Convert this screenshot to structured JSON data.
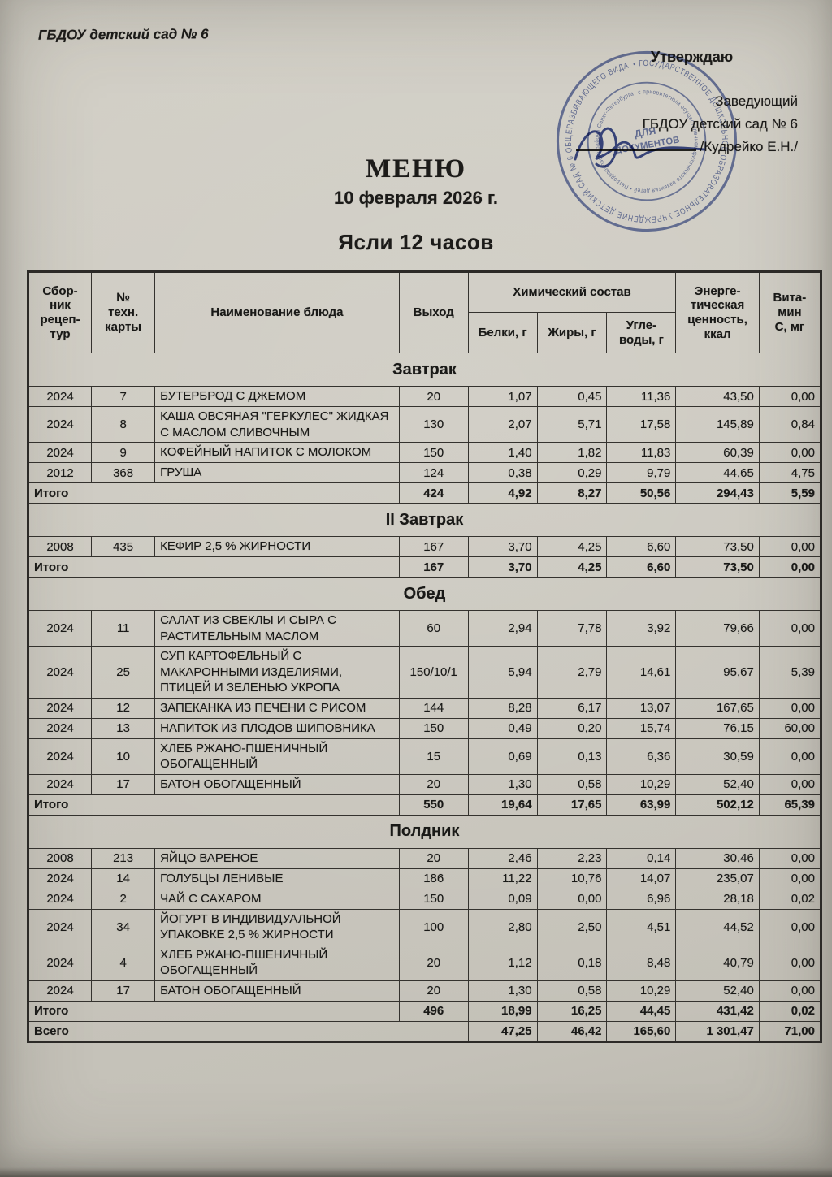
{
  "colors": {
    "paper": "#ccc9c0",
    "ink": "#1c1b19",
    "stamp_blue": "#3d519b",
    "table_line": "#34322e"
  },
  "header": {
    "org_name": "ГБДОУ детский сад № 6"
  },
  "approval": {
    "title": "Утверждаю",
    "line1": "Заведующий",
    "line2": "ГБДОУ детский сад № 6",
    "name": "/Кудрейко Е.Н./"
  },
  "stamp": {
    "outer_ring": "• ГОСУДАРСТВЕННОЕ ДОШКОЛЬНОЕ ОБРАЗОВАТЕЛЬНОЕ УЧРЕЖДЕНИЕ ДЕТСКИЙ САД № 6 ОБЩЕРАЗВИВАЮЩЕГО ВИДА",
    "inner_ring": "с приоритетным осуществлением физического развития детей • Петродворцового района Санкт-Петербурга",
    "center_line1": "ДЛЯ",
    "center_line2": "ДОКУМЕНТОВ"
  },
  "title": {
    "main": "МЕНЮ",
    "date": "10 февраля 2026 г.",
    "subtitle": "Ясли 12 часов"
  },
  "table": {
    "headers": {
      "source": "Сбор-\nник\nрецеп-\nтур",
      "card": "№\nтехн.\nкарты",
      "dish": "Наименование блюда",
      "out": "Выход",
      "chem": "Химический состав",
      "protein": "Белки, г",
      "fat": "Жиры, г",
      "carbs": "Угле-\nводы, г",
      "energy": "Энерге-\nтическая\nценность,\nккал",
      "vitc": "Вита-\nмин\nС, мг"
    },
    "total_label": "Итого",
    "grand_total_label": "Всего",
    "sections": [
      {
        "title": "Завтрак",
        "rows": [
          {
            "src": "2024",
            "card": "7",
            "name": "БУТЕРБРОД С ДЖЕМОМ",
            "out": "20",
            "protein": "1,07",
            "fat": "0,45",
            "carbs": "11,36",
            "kcal": "43,50",
            "vitc": "0,00"
          },
          {
            "src": "2024",
            "card": "8",
            "name": "КАША ОВСЯНАЯ \"ГЕРКУЛЕС\" ЖИДКАЯ С МАСЛОМ СЛИВОЧНЫМ",
            "out": "130",
            "protein": "2,07",
            "fat": "5,71",
            "carbs": "17,58",
            "kcal": "145,89",
            "vitc": "0,84"
          },
          {
            "src": "2024",
            "card": "9",
            "name": "КОФЕЙНЫЙ НАПИТОК С МОЛОКОМ",
            "out": "150",
            "protein": "1,40",
            "fat": "1,82",
            "carbs": "11,83",
            "kcal": "60,39",
            "vitc": "0,00"
          },
          {
            "src": "2012",
            "card": "368",
            "name": "ГРУША",
            "out": "124",
            "protein": "0,38",
            "fat": "0,29",
            "carbs": "9,79",
            "kcal": "44,65",
            "vitc": "4,75"
          }
        ],
        "total": {
          "out": "424",
          "protein": "4,92",
          "fat": "8,27",
          "carbs": "50,56",
          "kcal": "294,43",
          "vitc": "5,59"
        }
      },
      {
        "title": "II Завтрак",
        "rows": [
          {
            "src": "2008",
            "card": "435",
            "name": "КЕФИР 2,5 % ЖИРНОСТИ",
            "out": "167",
            "protein": "3,70",
            "fat": "4,25",
            "carbs": "6,60",
            "kcal": "73,50",
            "vitc": "0,00"
          }
        ],
        "total": {
          "out": "167",
          "protein": "3,70",
          "fat": "4,25",
          "carbs": "6,60",
          "kcal": "73,50",
          "vitc": "0,00"
        }
      },
      {
        "title": "Обед",
        "rows": [
          {
            "src": "2024",
            "card": "11",
            "name": "САЛАТ ИЗ СВЕКЛЫ И СЫРА С РАСТИТЕЛЬНЫМ МАСЛОМ",
            "out": "60",
            "protein": "2,94",
            "fat": "7,78",
            "carbs": "3,92",
            "kcal": "79,66",
            "vitc": "0,00"
          },
          {
            "src": "2024",
            "card": "25",
            "name": "СУП КАРТОФЕЛЬНЫЙ С МАКАРОННЫМИ ИЗДЕЛИЯМИ, ПТИЦЕЙ И ЗЕЛЕНЬЮ УКРОПА",
            "out": "150/10/1",
            "protein": "5,94",
            "fat": "2,79",
            "carbs": "14,61",
            "kcal": "95,67",
            "vitc": "5,39"
          },
          {
            "src": "2024",
            "card": "12",
            "name": "ЗАПЕКАНКА ИЗ ПЕЧЕНИ С РИСОМ",
            "out": "144",
            "protein": "8,28",
            "fat": "6,17",
            "carbs": "13,07",
            "kcal": "167,65",
            "vitc": "0,00"
          },
          {
            "src": "2024",
            "card": "13",
            "name": "НАПИТОК ИЗ ПЛОДОВ ШИПОВНИКА",
            "out": "150",
            "protein": "0,49",
            "fat": "0,20",
            "carbs": "15,74",
            "kcal": "76,15",
            "vitc": "60,00"
          },
          {
            "src": "2024",
            "card": "10",
            "name": "ХЛЕБ РЖАНО-ПШЕНИЧНЫЙ ОБОГАЩЕННЫЙ",
            "out": "15",
            "protein": "0,69",
            "fat": "0,13",
            "carbs": "6,36",
            "kcal": "30,59",
            "vitc": "0,00"
          },
          {
            "src": "2024",
            "card": "17",
            "name": "БАТОН ОБОГАЩЕННЫЙ",
            "out": "20",
            "protein": "1,30",
            "fat": "0,58",
            "carbs": "10,29",
            "kcal": "52,40",
            "vitc": "0,00"
          }
        ],
        "total": {
          "out": "550",
          "protein": "19,64",
          "fat": "17,65",
          "carbs": "63,99",
          "kcal": "502,12",
          "vitc": "65,39"
        }
      },
      {
        "title": "Полдник",
        "rows": [
          {
            "src": "2008",
            "card": "213",
            "name": "ЯЙЦО ВАРЕНОЕ",
            "out": "20",
            "protein": "2,46",
            "fat": "2,23",
            "carbs": "0,14",
            "kcal": "30,46",
            "vitc": "0,00"
          },
          {
            "src": "2024",
            "card": "14",
            "name": "ГОЛУБЦЫ ЛЕНИВЫЕ",
            "out": "186",
            "protein": "11,22",
            "fat": "10,76",
            "carbs": "14,07",
            "kcal": "235,07",
            "vitc": "0,00"
          },
          {
            "src": "2024",
            "card": "2",
            "name": "ЧАЙ С САХАРОМ",
            "out": "150",
            "protein": "0,09",
            "fat": "0,00",
            "carbs": "6,96",
            "kcal": "28,18",
            "vitc": "0,02"
          },
          {
            "src": "2024",
            "card": "34",
            "name": "ЙОГУРТ В ИНДИВИДУАЛЬНОЙ УПАКОВКЕ 2,5 % ЖИРНОСТИ",
            "out": "100",
            "protein": "2,80",
            "fat": "2,50",
            "carbs": "4,51",
            "kcal": "44,52",
            "vitc": "0,00"
          },
          {
            "src": "2024",
            "card": "4",
            "name": "ХЛЕБ РЖАНО-ПШЕНИЧНЫЙ ОБОГАЩЕННЫЙ",
            "out": "20",
            "protein": "1,12",
            "fat": "0,18",
            "carbs": "8,48",
            "kcal": "40,79",
            "vitc": "0,00"
          },
          {
            "src": "2024",
            "card": "17",
            "name": "БАТОН ОБОГАЩЕННЫЙ",
            "out": "20",
            "protein": "1,30",
            "fat": "0,58",
            "carbs": "10,29",
            "kcal": "52,40",
            "vitc": "0,00"
          }
        ],
        "total": {
          "out": "496",
          "protein": "18,99",
          "fat": "16,25",
          "carbs": "44,45",
          "kcal": "431,42",
          "vitc": "0,02"
        }
      }
    ],
    "grand_total": {
      "protein": "47,25",
      "fat": "46,42",
      "carbs": "165,60",
      "kcal": "1 301,47",
      "vitc": "71,00"
    }
  }
}
